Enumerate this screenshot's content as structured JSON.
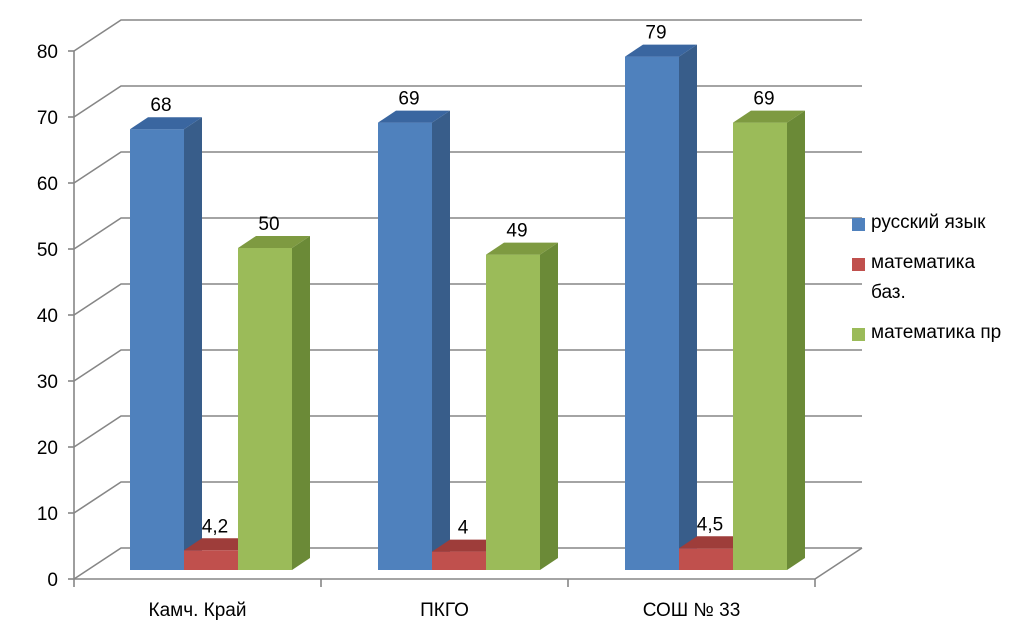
{
  "chart_data": {
    "type": "bar",
    "categories": [
      "Камч. Край",
      "ПКГО",
      "СОШ № 33"
    ],
    "series": [
      {
        "name": "русский язык",
        "values": [
          68,
          69,
          79
        ],
        "labels": [
          "68",
          "69",
          "79"
        ],
        "color": "#4F81BD",
        "side": "#385D8A",
        "top": "#3A66A0"
      },
      {
        "name": "математика баз.",
        "values": [
          4.2,
          4,
          4.5
        ],
        "labels": [
          "4,2",
          "4",
          "4,5"
        ],
        "color": "#C0504D",
        "side": "#8C3836",
        "top": "#9E3D3A"
      },
      {
        "name": "математика пр",
        "values": [
          50,
          49,
          69
        ],
        "labels": [
          "50",
          "49",
          "69"
        ],
        "color": "#9BBB59",
        "side": "#6B8A37",
        "top": "#7E9A41"
      }
    ],
    "ylim": [
      0,
      80
    ],
    "yticks": [
      "0",
      "10",
      "20",
      "30",
      "40",
      "50",
      "60",
      "70",
      "80"
    ],
    "grid": true,
    "legend_position": "right",
    "title": "",
    "xlabel": "",
    "ylabel": ""
  }
}
